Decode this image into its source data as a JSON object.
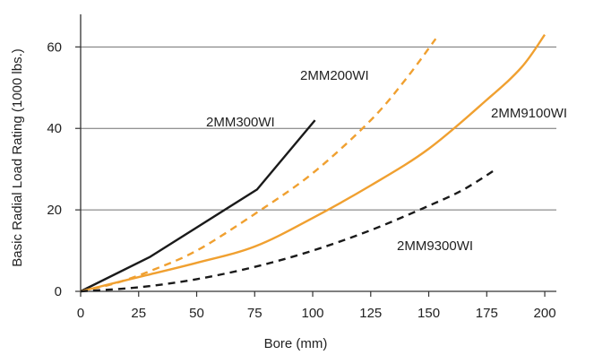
{
  "chart_data": {
    "type": "line",
    "title": "",
    "xlabel": "Bore (mm)",
    "ylabel": "Basic Radial Load Rating (1000 lbs.)",
    "xlim": [
      0,
      205
    ],
    "ylim": [
      0,
      68
    ],
    "xticks": [
      0,
      25,
      50,
      75,
      100,
      125,
      150,
      175,
      200
    ],
    "yticks": [
      0,
      20,
      40,
      60
    ],
    "grid": "horizontal",
    "legend": "none",
    "series": [
      {
        "name": "2MM300WI",
        "color": "#1a1a1a",
        "dash": "solid",
        "x": [
          0,
          30,
          76,
          101
        ],
        "y": [
          0,
          8.5,
          25,
          42
        ]
      },
      {
        "name": "2MM200WI",
        "color": "#f0a030",
        "dash": "dashed",
        "x": [
          0,
          15,
          30,
          50,
          75,
          100,
          125,
          140,
          153
        ],
        "y": [
          0,
          2,
          5,
          10,
          19,
          29,
          42,
          52,
          62
        ]
      },
      {
        "name": "2MM9100WI",
        "color": "#f0a030",
        "dash": "solid",
        "x": [
          0,
          25,
          50,
          75,
          100,
          125,
          150,
          175,
          190,
          200
        ],
        "y": [
          0,
          3.5,
          7,
          11,
          18,
          26,
          35,
          47,
          55,
          63
        ]
      },
      {
        "name": "2MM9300WI",
        "color": "#1a1a1a",
        "dash": "dashed",
        "x": [
          0,
          25,
          50,
          75,
          100,
          125,
          150,
          165,
          179
        ],
        "y": [
          0,
          1,
          3,
          6,
          10,
          15,
          21,
          25,
          30
        ]
      }
    ]
  }
}
